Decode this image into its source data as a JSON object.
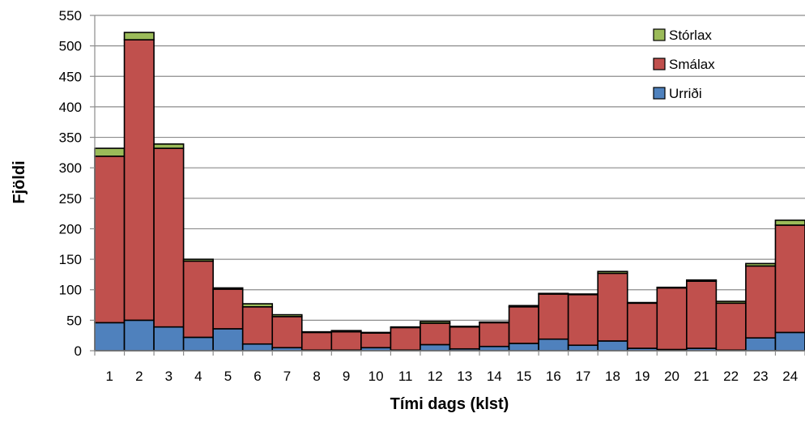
{
  "chart_data": {
    "type": "bar",
    "stacked": true,
    "title": "",
    "xlabel": "Tími dags (klst)",
    "ylabel": "Fjöldi",
    "ylim": [
      0,
      550
    ],
    "yticks": [
      "0",
      "50",
      "100",
      "150",
      "200",
      "250",
      "300",
      "350",
      "400",
      "450",
      "500",
      "550"
    ],
    "categories": [
      "1",
      "2",
      "3",
      "4",
      "5",
      "6",
      "7",
      "8",
      "9",
      "10",
      "11",
      "12",
      "13",
      "14",
      "15",
      "16",
      "17",
      "18",
      "19",
      "20",
      "21",
      "22",
      "23",
      "24"
    ],
    "series": [
      {
        "name": "Urriði",
        "color": "#4f81bd",
        "values": [
          46,
          50,
          39,
          22,
          36,
          11,
          5,
          1,
          1,
          5,
          1,
          10,
          3,
          7,
          12,
          19,
          9,
          16,
          4,
          2,
          4,
          1,
          21,
          30
        ]
      },
      {
        "name": "Smálax",
        "color": "#c0504d",
        "values": [
          273,
          460,
          293,
          125,
          65,
          61,
          51,
          29,
          30,
          24,
          37,
          35,
          36,
          39,
          60,
          74,
          83,
          111,
          74,
          101,
          110,
          77,
          118,
          176
        ]
      },
      {
        "name": "Stórlax",
        "color": "#9bbb59",
        "values": [
          13,
          12,
          7,
          3,
          2,
          5,
          3,
          1,
          2,
          1,
          1,
          3,
          1,
          1,
          2,
          1,
          1,
          3,
          1,
          1,
          2,
          3,
          4,
          8
        ]
      }
    ],
    "legend": {
      "position": "top-right",
      "order": [
        "Stórlax",
        "Smálax",
        "Urriði"
      ]
    },
    "grid": {
      "horizontal": true,
      "vertical": false
    }
  }
}
